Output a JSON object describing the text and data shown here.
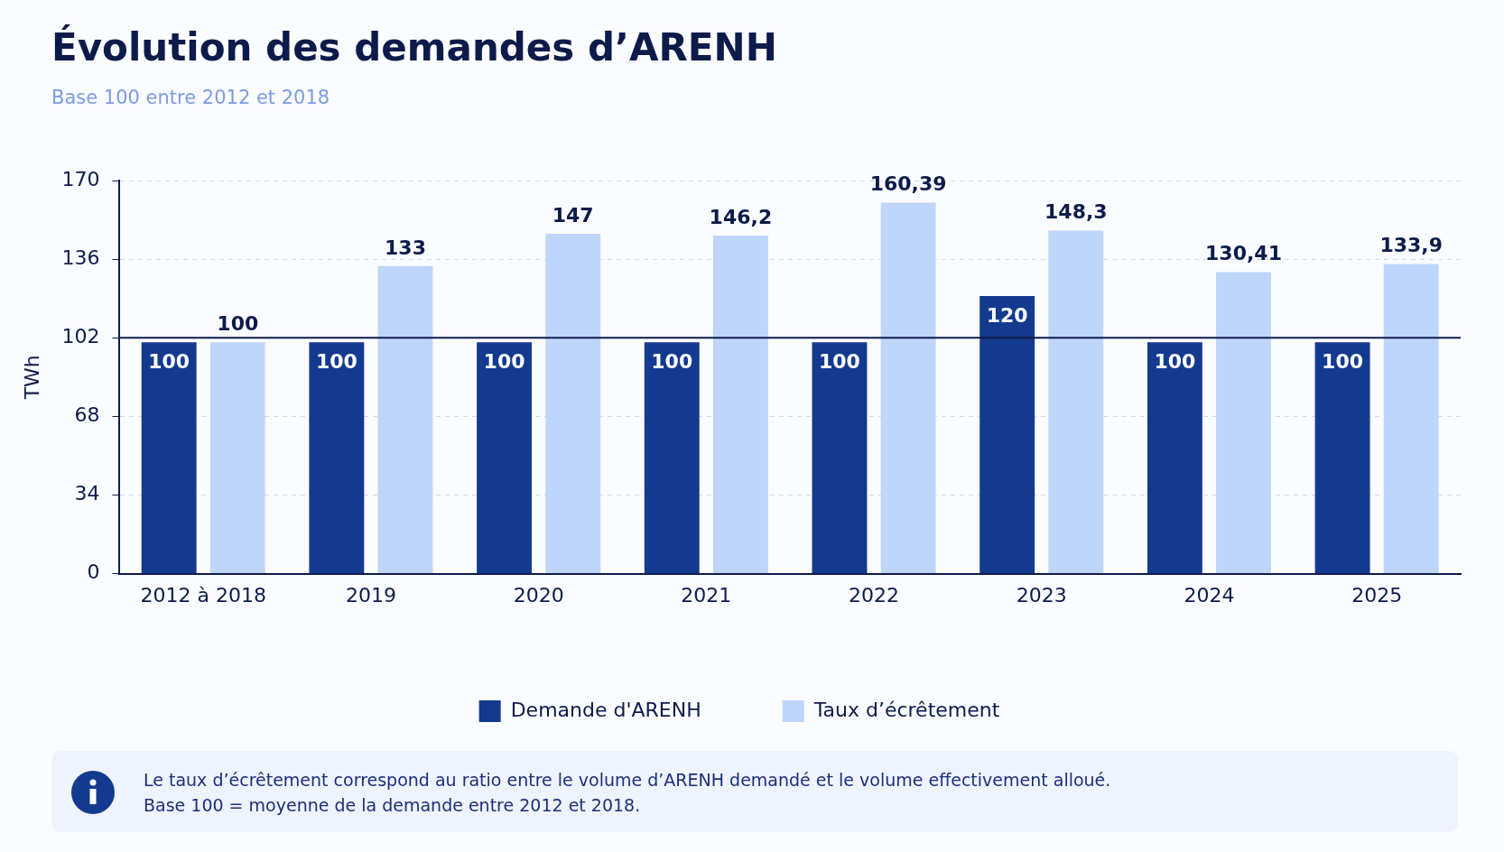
{
  "chart_data": {
    "type": "bar",
    "title": "Évolution des demandes d’ARENH",
    "subtitle": "Base 100 entre 2012 et 2018",
    "ylabel": "TWh",
    "categories": [
      "2012 à 2018",
      "2019",
      "2020",
      "2021",
      "2022",
      "2023",
      "2024",
      "2025"
    ],
    "series": [
      {
        "name": "Demande d'ARENH",
        "color": "#133a8e",
        "values": [
          100,
          100,
          100,
          100,
          100,
          120,
          100,
          100
        ],
        "value_labels": [
          "100",
          "100",
          "100",
          "100",
          "100",
          "120",
          "100",
          "100"
        ]
      },
      {
        "name": "Taux d’écrêtement",
        "color": "#bfd6fb",
        "values": [
          100,
          133,
          147,
          146.2,
          160.39,
          148.3,
          130.41,
          133.9
        ],
        "value_labels": [
          "100",
          "133",
          "147",
          "146,2",
          "160,39",
          "148,3",
          "130,41",
          "133,9"
        ]
      }
    ],
    "ylim": [
      0,
      170
    ],
    "yticks": [
      0,
      34,
      68,
      102,
      136,
      170
    ],
    "grid": "y",
    "legend": "bottom",
    "ref_lines": [
      {
        "axis": "y",
        "value": 102,
        "color": "#0d1b4b"
      }
    ],
    "annotations": [
      "Le taux d’écrêtement correspond au ratio entre le volume d’ARENH demandé et le volume effectivement alloué.",
      "Base 100 = moyenne de la demande entre 2012 et 2018."
    ]
  }
}
